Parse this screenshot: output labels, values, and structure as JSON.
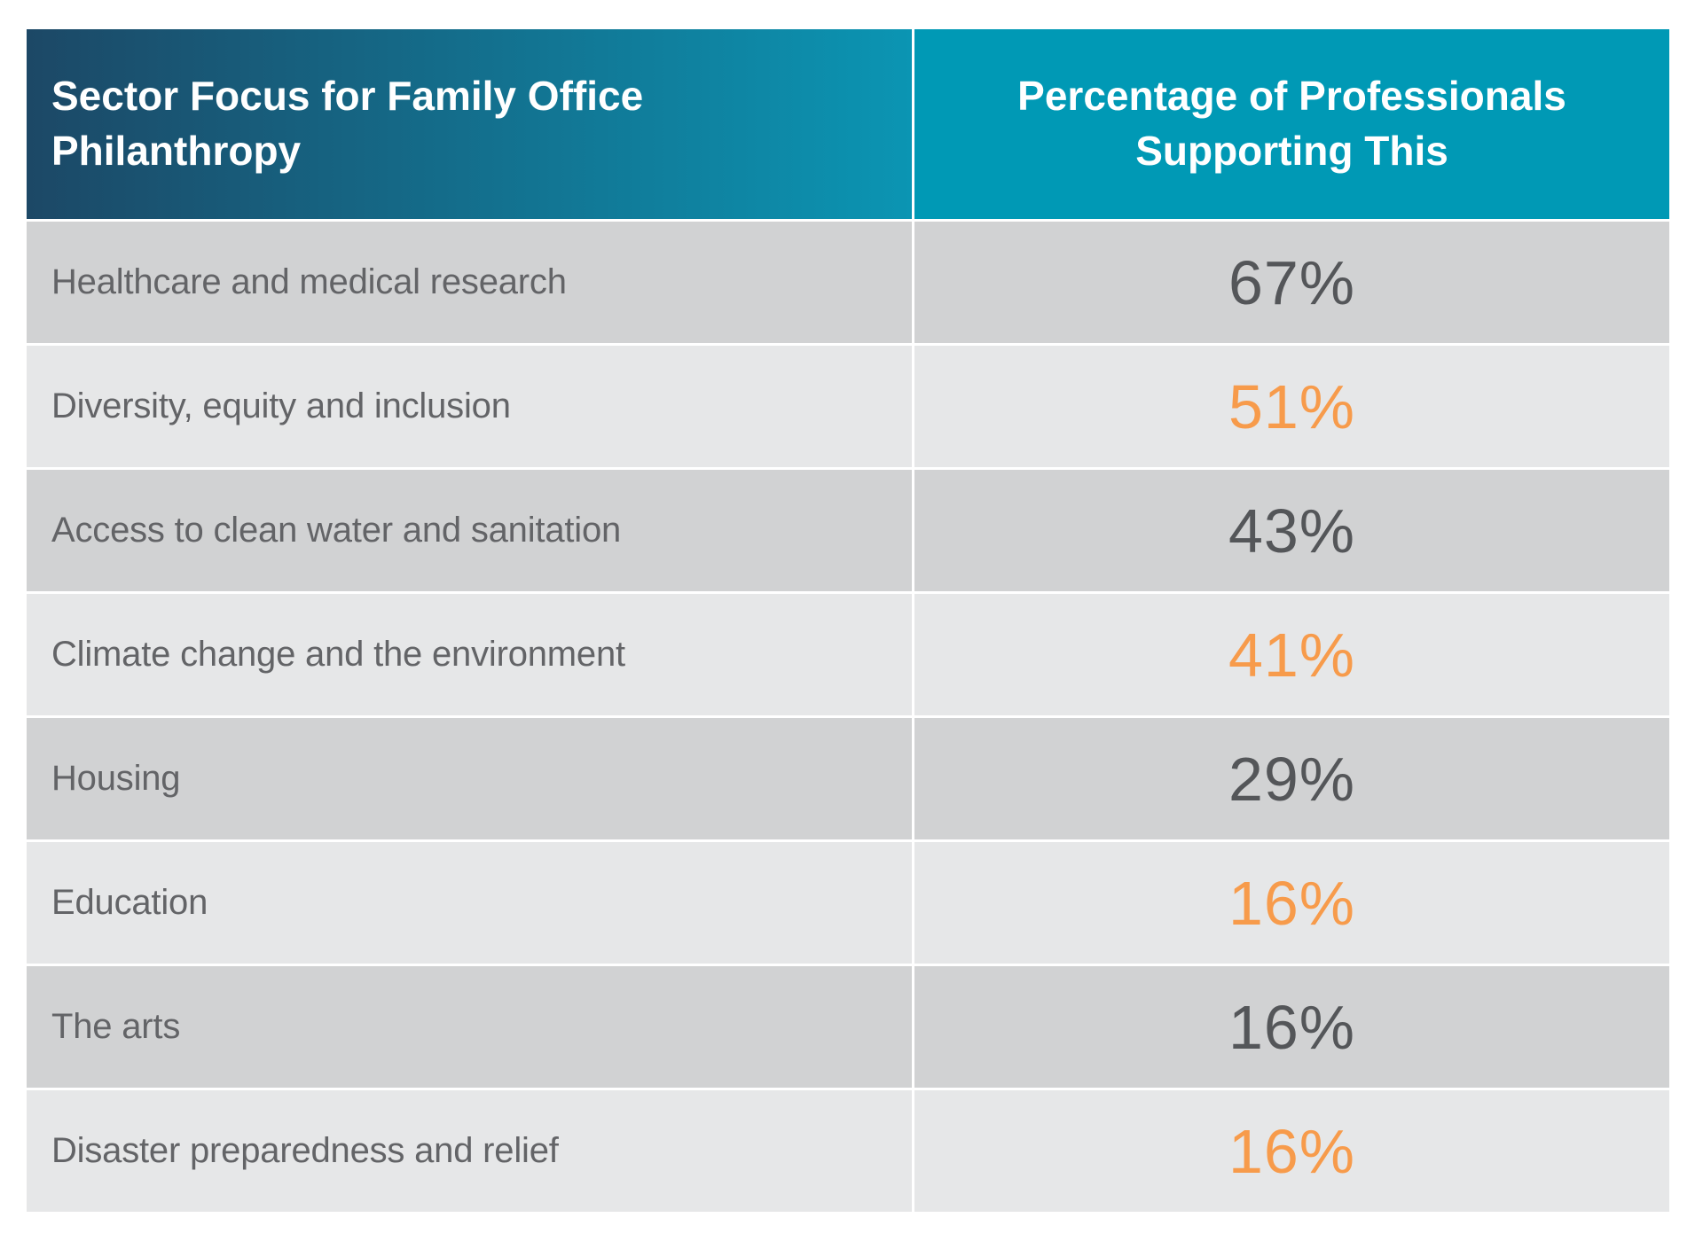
{
  "table": {
    "columns": [
      {
        "label": "Sector Focus for Family Office Philanthropy"
      },
      {
        "label": "Percentage of Professionals Supporting This"
      }
    ],
    "rows": [
      {
        "label": "Healthcare and medical research",
        "value": "67%",
        "value_color": "dark"
      },
      {
        "label": "Diversity, equity and inclusion",
        "value": "51%",
        "value_color": "orange"
      },
      {
        "label": "Access to clean water and sanitation",
        "value": "43%",
        "value_color": "dark"
      },
      {
        "label": "Climate change and the environment",
        "value": "41%",
        "value_color": "orange"
      },
      {
        "label": "Housing",
        "value": "29%",
        "value_color": "dark"
      },
      {
        "label": "Education",
        "value": "16%",
        "value_color": "orange"
      },
      {
        "label": "The arts",
        "value": "16%",
        "value_color": "dark"
      },
      {
        "label": "Disaster preparedness and relief",
        "value": "16%",
        "value_color": "orange"
      }
    ]
  },
  "colors": {
    "header_gradient_start": "#1C4866",
    "header_gradient_end": "#0B95B3",
    "header_right_bg": "#0099B5",
    "row_odd_bg": "#D1D2D3",
    "row_even_bg": "#E6E7E8",
    "label_text": "#636467",
    "value_dark": "#545659",
    "value_orange": "#F79B4B"
  },
  "chart_data": {
    "type": "table",
    "title": "Sector Focus for Family Office Philanthropy",
    "columns": [
      "Sector Focus for Family Office Philanthropy",
      "Percentage of Professionals Supporting This"
    ],
    "categories": [
      "Healthcare and medical research",
      "Diversity, equity and inclusion",
      "Access to clean water and sanitation",
      "Climate change and the environment",
      "Housing",
      "Education",
      "The arts",
      "Disaster preparedness and relief"
    ],
    "values": [
      67,
      51,
      43,
      41,
      29,
      16,
      16,
      16
    ],
    "unit": "%",
    "value_color_pattern": [
      "dark",
      "orange",
      "dark",
      "orange",
      "dark",
      "orange",
      "dark",
      "orange"
    ]
  }
}
